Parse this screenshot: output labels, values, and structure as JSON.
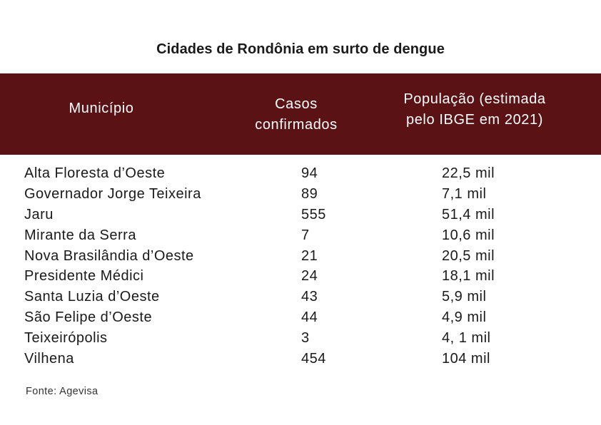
{
  "title": "Cidades de Rondônia em surto de dengue",
  "table": {
    "headers": {
      "municipio": "Município",
      "casos": "Casos\nconfirmados",
      "populacao": "População (estimada\npelo IBGE em 2021)"
    },
    "rows": [
      {
        "municipio": "Alta Floresta d’Oeste",
        "casos": "94",
        "populacao": "22,5 mil"
      },
      {
        "municipio": "Governador Jorge Teixeira",
        "casos": "89",
        "populacao": "7,1 mil"
      },
      {
        "municipio": "Jaru",
        "casos": "555",
        "populacao": "51,4 mil"
      },
      {
        "municipio": "Mirante da Serra",
        "casos": "7",
        "populacao": "10,6 mil"
      },
      {
        "municipio": "Nova Brasilândia d’Oeste",
        "casos": "21",
        "populacao": "20,5 mil"
      },
      {
        "municipio": "Presidente Médici",
        "casos": "24",
        "populacao": "18,1 mil"
      },
      {
        "municipio": "Santa Luzia d’Oeste",
        "casos": "43",
        "populacao": "5,9 mil"
      },
      {
        "municipio": "São Felipe d’Oeste",
        "casos": "44",
        "populacao": "4,9 mil"
      },
      {
        "municipio": "Teixeirópolis",
        "casos": "3",
        "populacao": "4, 1 mil"
      },
      {
        "municipio": "Vilhena",
        "casos": "454",
        "populacao": "104 mil"
      }
    ]
  },
  "source": "Fonte: Agevisa",
  "colors": {
    "header_bg": "#5a1215",
    "header_text": "#ffffff",
    "body_text": "#1a1a1a"
  }
}
